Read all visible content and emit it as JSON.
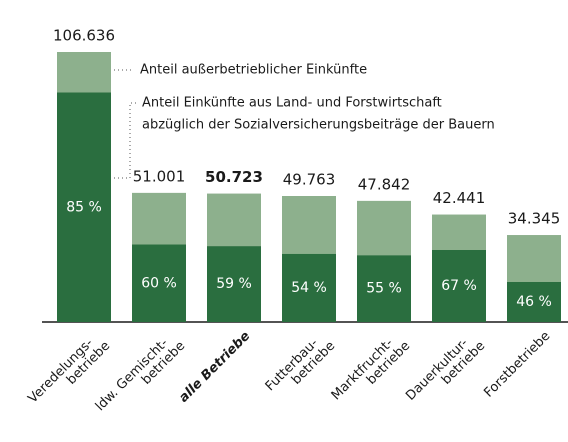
{
  "chart_data": {
    "type": "bar",
    "annotations": [
      "Anteil außerbetrieblicher Einkünfte",
      "Anteil Einkünfte aus Land- und Forstwirtschaft",
      "abzüglich der Sozialversicherungsbeiträge der Bauern"
    ],
    "categories": [
      [
        "Veredelungs-",
        "betriebe"
      ],
      [
        "ldw. Gemischt-",
        "betriebe"
      ],
      [
        "alle Betriebe"
      ],
      [
        "Futterbau-",
        "betriebe"
      ],
      [
        "Marktfrucht-",
        "betriebe"
      ],
      [
        "Dauerkultur-",
        "betriebe"
      ],
      [
        "Forstbetriebe"
      ]
    ],
    "totals": [
      106636,
      51001,
      50723,
      49763,
      47842,
      42441,
      34345
    ],
    "totals_labels": [
      "106.636",
      "51.001",
      "50.723",
      "49.763",
      "47.842",
      "42.441",
      "34.345"
    ],
    "shares": [
      85,
      60,
      59,
      54,
      55,
      67,
      46
    ],
    "shares_labels": [
      "85 %",
      "60 %",
      "59 %",
      "54 %",
      "55 %",
      "67 %",
      "46 %"
    ],
    "colors": {
      "total": "#8db08d",
      "share": "#2a6e3f"
    },
    "bold_index": 2
  }
}
